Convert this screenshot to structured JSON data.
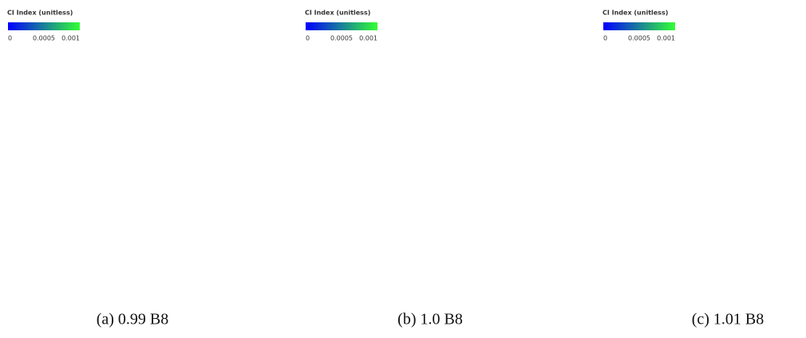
{
  "panels": [
    {
      "legend": {
        "title": "CI Index (unitless)",
        "ticks": [
          0,
          0.0005,
          0.001
        ]
      },
      "caption": "(a) 0.99 B8"
    },
    {
      "legend": {
        "title": "CI Index (unitless)",
        "ticks": [
          0,
          0.0005,
          0.001
        ]
      },
      "caption": "(b) 1.0 B8"
    },
    {
      "legend": {
        "title": "CI Index (unitless)",
        "ticks": [
          0,
          0.0005,
          0.001
        ]
      },
      "caption": "(c) 1.01 B8"
    }
  ]
}
